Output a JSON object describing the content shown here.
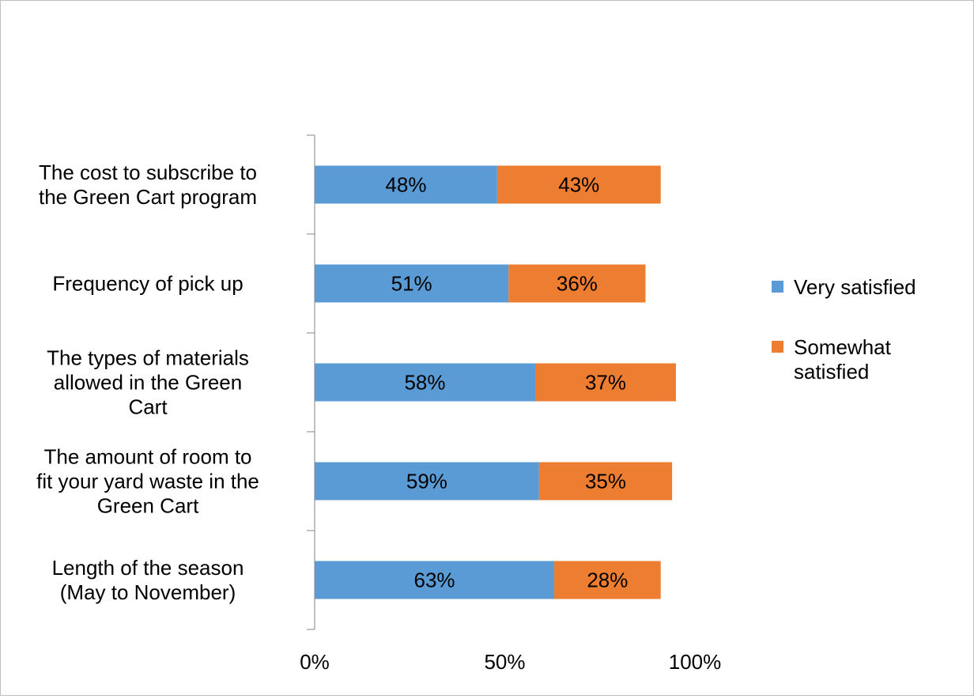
{
  "chart_data": {
    "type": "bar",
    "orientation": "horizontal",
    "stacked": true,
    "categories": [
      [
        "The cost to subscribe to",
        "the Green Cart program"
      ],
      [
        "Frequency of pick up"
      ],
      [
        "The types of materials",
        "allowed in the Green",
        "Cart"
      ],
      [
        "The amount of room to",
        "fit your yard waste in the",
        "Green Cart"
      ],
      [
        "Length of the season",
        "(May to November)"
      ]
    ],
    "series": [
      {
        "name": "Very satisfied",
        "color": "#5b9bd5",
        "values": [
          48,
          51,
          58,
          59,
          63
        ]
      },
      {
        "name": "Somewhat satisfied",
        "color": "#ed7d31",
        "values": [
          43,
          36,
          37,
          35,
          28
        ]
      }
    ],
    "data_labels": [
      [
        "48%",
        "51%",
        "58%",
        "59%",
        "63%"
      ],
      [
        "43%",
        "36%",
        "37%",
        "35%",
        "28%"
      ]
    ],
    "x_ticks": [
      0,
      50,
      100
    ],
    "x_tick_labels": [
      "0%",
      "50%",
      "100%"
    ],
    "xlim": [
      0,
      100
    ],
    "legend_labels": [
      [
        "Very satisfied"
      ],
      [
        "Somewhat",
        "satisfied"
      ]
    ],
    "legend_position": "right",
    "grid": false
  }
}
